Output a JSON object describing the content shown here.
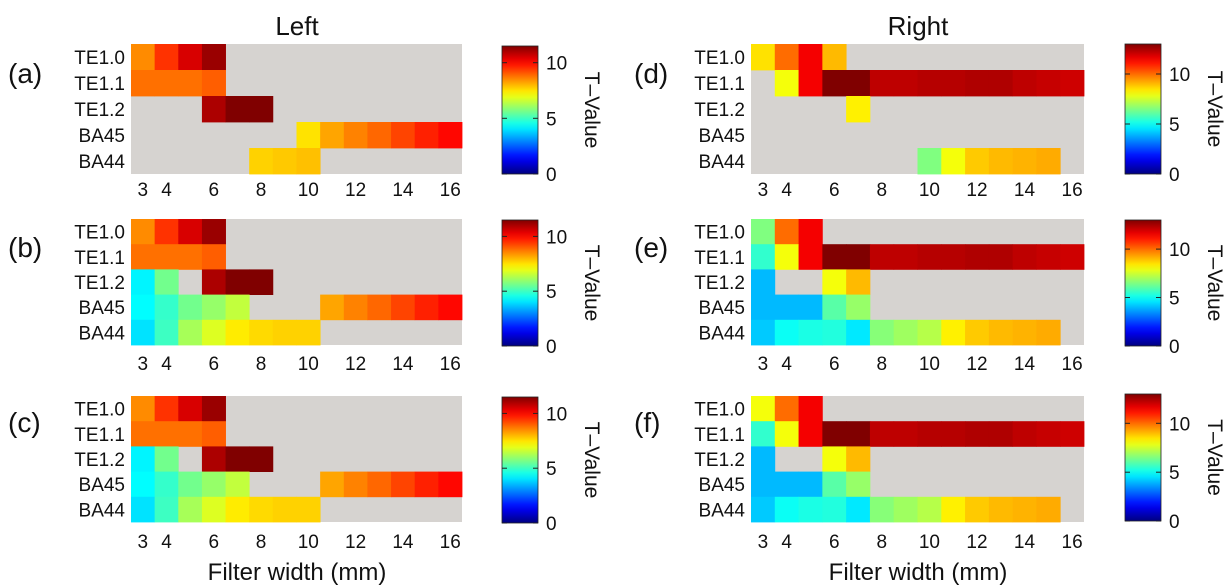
{
  "figure": {
    "column_titles": [
      "Left",
      "Right"
    ],
    "xlabel": "Filter width (mm)",
    "colorbar_label": "T–Value",
    "empty_color": "#d6d3d0"
  },
  "chart_data": [
    {
      "type": "heatmap",
      "panel": "(a)",
      "column": "Left",
      "rows": [
        "TE1.0",
        "TE1.1",
        "TE1.2",
        "BA45",
        "BA44"
      ],
      "x": [
        3,
        4,
        5,
        6,
        7,
        8,
        9,
        10,
        11,
        12,
        13,
        14,
        15,
        16
      ],
      "x_tick_labels": [
        "3",
        "4",
        "6",
        "8",
        "10",
        "12",
        "14",
        "16"
      ],
      "colorbar": {
        "min": 0,
        "max": 11.5,
        "ticks": [
          "0",
          "5",
          "10"
        ],
        "label": "T–Value"
      },
      "values": [
        [
          8.5,
          9.5,
          10.5,
          11.2,
          null,
          null,
          null,
          null,
          null,
          null,
          null,
          null,
          null,
          null
        ],
        [
          8.8,
          8.8,
          8.8,
          9.0,
          null,
          null,
          null,
          null,
          null,
          null,
          null,
          null,
          null,
          null
        ],
        [
          null,
          null,
          null,
          11.0,
          12.0,
          12.2,
          null,
          null,
          null,
          null,
          null,
          null,
          null,
          null
        ],
        [
          null,
          null,
          null,
          null,
          null,
          null,
          null,
          7.5,
          8.2,
          8.6,
          8.9,
          9.3,
          9.7,
          10.0
        ],
        [
          null,
          null,
          null,
          null,
          null,
          7.7,
          7.8,
          7.9,
          null,
          null,
          null,
          null,
          null,
          null
        ]
      ]
    },
    {
      "type": "heatmap",
      "panel": "(b)",
      "column": "Left",
      "rows": [
        "TE1.0",
        "TE1.1",
        "TE1.2",
        "BA45",
        "BA44"
      ],
      "x": [
        3,
        4,
        5,
        6,
        7,
        8,
        9,
        10,
        11,
        12,
        13,
        14,
        15,
        16
      ],
      "x_tick_labels": [
        "3",
        "4",
        "6",
        "8",
        "10",
        "12",
        "14",
        "16"
      ],
      "colorbar": {
        "min": 0,
        "max": 11.5,
        "ticks": [
          "0",
          "5",
          "10"
        ],
        "label": "T–Value"
      },
      "values": [
        [
          8.5,
          9.5,
          10.5,
          11.2,
          null,
          null,
          null,
          null,
          null,
          null,
          null,
          null,
          null,
          null
        ],
        [
          8.8,
          8.8,
          8.8,
          9.0,
          null,
          null,
          null,
          null,
          null,
          null,
          null,
          null,
          null,
          null
        ],
        [
          4.2,
          5.6,
          null,
          11.0,
          12.0,
          12.2,
          null,
          null,
          null,
          null,
          null,
          null,
          null,
          null
        ],
        [
          4.3,
          4.9,
          5.6,
          6.0,
          6.5,
          null,
          null,
          null,
          8.2,
          8.6,
          8.9,
          9.3,
          9.7,
          10.0
        ],
        [
          4.0,
          5.0,
          6.2,
          6.8,
          7.4,
          7.6,
          7.7,
          7.7,
          null,
          null,
          null,
          null,
          null,
          null
        ]
      ]
    },
    {
      "type": "heatmap",
      "panel": "(c)",
      "column": "Left",
      "rows": [
        "TE1.0",
        "TE1.1",
        "TE1.2",
        "BA45",
        "BA44"
      ],
      "x": [
        3,
        4,
        5,
        6,
        7,
        8,
        9,
        10,
        11,
        12,
        13,
        14,
        15,
        16
      ],
      "x_tick_labels": [
        "3",
        "4",
        "6",
        "8",
        "10",
        "12",
        "14",
        "16"
      ],
      "colorbar": {
        "min": 0,
        "max": 11.5,
        "ticks": [
          "0",
          "5",
          "10"
        ],
        "label": "T–Value"
      },
      "values": [
        [
          8.5,
          9.5,
          10.5,
          11.2,
          null,
          null,
          null,
          null,
          null,
          null,
          null,
          null,
          null,
          null
        ],
        [
          8.8,
          8.8,
          8.8,
          9.0,
          null,
          null,
          null,
          null,
          null,
          null,
          null,
          null,
          null,
          null
        ],
        [
          4.2,
          5.6,
          null,
          11.0,
          12.0,
          12.2,
          null,
          null,
          null,
          null,
          null,
          null,
          null,
          null
        ],
        [
          4.3,
          4.9,
          5.6,
          6.0,
          6.5,
          null,
          null,
          null,
          8.2,
          8.6,
          8.9,
          9.3,
          9.7,
          10.0
        ],
        [
          4.0,
          5.0,
          6.2,
          6.8,
          7.4,
          7.6,
          7.7,
          7.7,
          null,
          null,
          null,
          null,
          null,
          null
        ]
      ]
    },
    {
      "type": "heatmap",
      "panel": "(d)",
      "column": "Right",
      "rows": [
        "TE1.0",
        "TE1.1",
        "TE1.2",
        "BA45",
        "BA44"
      ],
      "x": [
        3,
        4,
        5,
        6,
        7,
        8,
        9,
        10,
        11,
        12,
        13,
        14,
        15,
        16
      ],
      "x_tick_labels": [
        "3",
        "4",
        "6",
        "8",
        "10",
        "12",
        "14",
        "16"
      ],
      "colorbar": {
        "min": 0,
        "max": 13,
        "ticks": [
          "0",
          "5",
          "10"
        ],
        "label": "T–Value"
      },
      "values": [
        [
          8.5,
          10.0,
          11.5,
          9.0,
          null,
          null,
          null,
          null,
          null,
          null,
          null,
          null,
          null,
          null
        ],
        [
          null,
          8.0,
          11.5,
          13.3,
          13.6,
          12.2,
          12.2,
          12.3,
          12.3,
          12.4,
          12.4,
          12.2,
          12.1,
          12.0
        ],
        [
          null,
          null,
          null,
          null,
          8.3,
          null,
          null,
          null,
          null,
          null,
          null,
          null,
          null,
          null
        ],
        [
          null,
          null,
          null,
          null,
          null,
          null,
          null,
          null,
          null,
          null,
          null,
          null,
          null,
          null
        ],
        [
          null,
          null,
          null,
          null,
          null,
          null,
          null,
          6.5,
          8.0,
          8.8,
          9.0,
          9.1,
          9.2,
          null
        ]
      ]
    },
    {
      "type": "heatmap",
      "panel": "(e)",
      "column": "Right",
      "rows": [
        "TE1.0",
        "TE1.1",
        "TE1.2",
        "BA45",
        "BA44"
      ],
      "x": [
        3,
        4,
        5,
        6,
        7,
        8,
        9,
        10,
        11,
        12,
        13,
        14,
        15,
        16
      ],
      "x_tick_labels": [
        "3",
        "4",
        "6",
        "8",
        "10",
        "12",
        "14",
        "16"
      ],
      "colorbar": {
        "min": 0,
        "max": 13,
        "ticks": [
          "0",
          "5",
          "10"
        ],
        "label": "T–Value"
      },
      "values": [
        [
          6.5,
          10.0,
          11.5,
          null,
          null,
          null,
          null,
          null,
          null,
          null,
          null,
          null,
          null,
          null
        ],
        [
          5.5,
          8.0,
          11.5,
          13.3,
          13.6,
          12.2,
          12.2,
          12.3,
          12.3,
          12.4,
          12.4,
          12.2,
          12.1,
          12.0
        ],
        [
          4.0,
          null,
          null,
          8.0,
          9.0,
          null,
          null,
          null,
          null,
          null,
          null,
          null,
          null,
          null
        ],
        [
          4.0,
          4.0,
          4.0,
          6.0,
          6.8,
          null,
          null,
          null,
          null,
          null,
          null,
          null,
          null,
          null
        ],
        [
          4.2,
          5.0,
          5.2,
          5.3,
          4.6,
          6.6,
          6.9,
          7.2,
          8.3,
          8.8,
          9.0,
          9.1,
          9.2,
          null
        ]
      ]
    },
    {
      "type": "heatmap",
      "panel": "(f)",
      "column": "Right",
      "rows": [
        "TE1.0",
        "TE1.1",
        "TE1.2",
        "BA45",
        "BA44"
      ],
      "x": [
        3,
        4,
        5,
        6,
        7,
        8,
        9,
        10,
        11,
        12,
        13,
        14,
        15,
        16
      ],
      "x_tick_labels": [
        "3",
        "4",
        "6",
        "8",
        "10",
        "12",
        "14",
        "16"
      ],
      "colorbar": {
        "min": 0,
        "max": 13,
        "ticks": [
          "0",
          "5",
          "10"
        ],
        "label": "T–Value"
      },
      "values": [
        [
          8.0,
          10.0,
          11.5,
          null,
          null,
          null,
          null,
          null,
          null,
          null,
          null,
          null,
          null,
          null
        ],
        [
          5.5,
          8.0,
          11.5,
          13.3,
          13.6,
          12.2,
          12.2,
          12.3,
          12.3,
          12.4,
          12.4,
          12.2,
          12.1,
          12.0
        ],
        [
          4.0,
          null,
          null,
          8.0,
          9.0,
          null,
          null,
          null,
          null,
          null,
          null,
          null,
          null,
          null
        ],
        [
          4.0,
          4.0,
          4.0,
          6.0,
          6.8,
          null,
          null,
          null,
          null,
          null,
          null,
          null,
          null,
          null
        ],
        [
          4.2,
          5.0,
          5.2,
          5.3,
          4.6,
          6.6,
          6.9,
          7.2,
          8.3,
          8.8,
          9.0,
          9.1,
          9.2,
          null
        ]
      ]
    }
  ]
}
